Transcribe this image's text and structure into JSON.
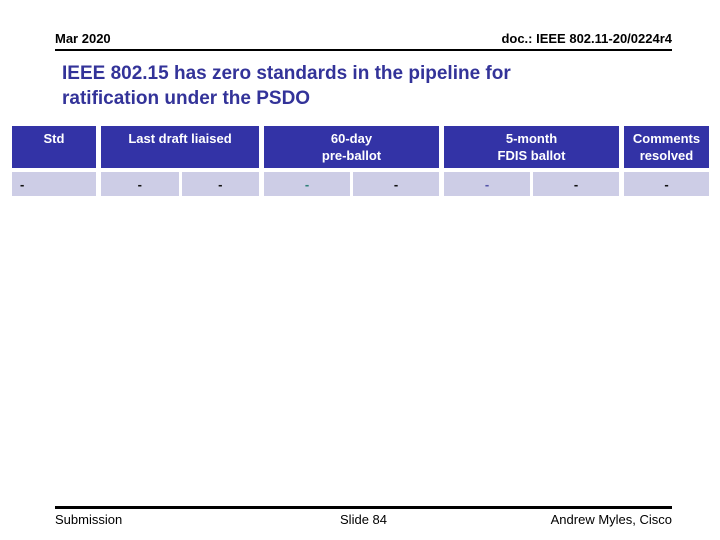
{
  "slide": {
    "header": {
      "date": "Mar 2020",
      "doc_number": "doc.: IEEE 802.11-20/0224r4"
    },
    "title": "IEEE 802.15 has zero standards in the pipeline for\nratification under the PSDO",
    "table": {
      "header_bg": "#3333A6",
      "row_bg": "#CDCDE6",
      "groups": [
        {
          "label": "Std",
          "cells": [
            {
              "text": "-",
              "color": "#111111"
            }
          ]
        },
        {
          "label": "Last draft liaised",
          "cells": [
            {
              "text": "-",
              "color": "#111111"
            },
            {
              "text": "-",
              "color": "#111111"
            }
          ]
        },
        {
          "label": "60-day\npre-ballot",
          "cells": [
            {
              "text": "-",
              "color": "#2E8078"
            },
            {
              "text": "-",
              "color": "#111111"
            }
          ]
        },
        {
          "label": "5-month\nFDIS ballot",
          "cells": [
            {
              "text": "-",
              "color": "#5353A8"
            },
            {
              "text": "-",
              "color": "#111111"
            }
          ]
        },
        {
          "label": "Comments\nresolved",
          "cells": [
            {
              "text": "-",
              "color": "#111111"
            }
          ]
        }
      ]
    },
    "footer": {
      "left": "Submission",
      "center": "Slide 84",
      "right": "Andrew Myles, Cisco"
    }
  }
}
